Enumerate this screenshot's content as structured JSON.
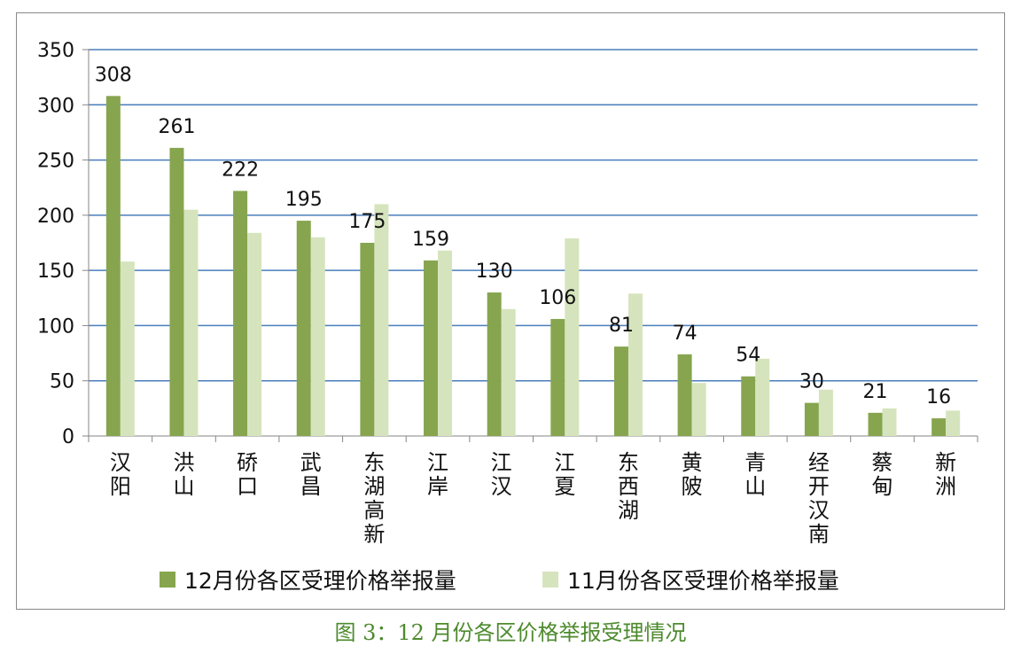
{
  "caption": "图 3：12 月份各区价格举报受理情况",
  "colors": {
    "series_dark": "#86a54e",
    "series_light": "#d6e4bd",
    "grid": "#4a7ebb",
    "caption": "#4d8a2d",
    "axis": "#868686"
  },
  "chart_data": {
    "type": "bar",
    "categories": [
      "汉阳",
      "洪山",
      "硚口",
      "武昌",
      "东湖高新",
      "江岸",
      "江汉",
      "江夏",
      "东西湖",
      "黄陂",
      "青山",
      "经开汉南",
      "蔡甸",
      "新洲"
    ],
    "series": [
      {
        "name": "12月份各区受理价格举报量",
        "values": [
          308,
          261,
          222,
          195,
          175,
          159,
          130,
          106,
          81,
          74,
          54,
          30,
          21,
          16
        ],
        "data_labels": true
      },
      {
        "name": "11月份各区受理价格举报量",
        "values": [
          158,
          205,
          184,
          180,
          210,
          168,
          115,
          179,
          129,
          48,
          70,
          42,
          25,
          23
        ],
        "data_labels": false
      }
    ],
    "yticks": [
      0,
      50,
      100,
      150,
      200,
      250,
      300,
      350
    ],
    "ylim": [
      0,
      350
    ],
    "grid": true,
    "legend_position": "bottom"
  }
}
